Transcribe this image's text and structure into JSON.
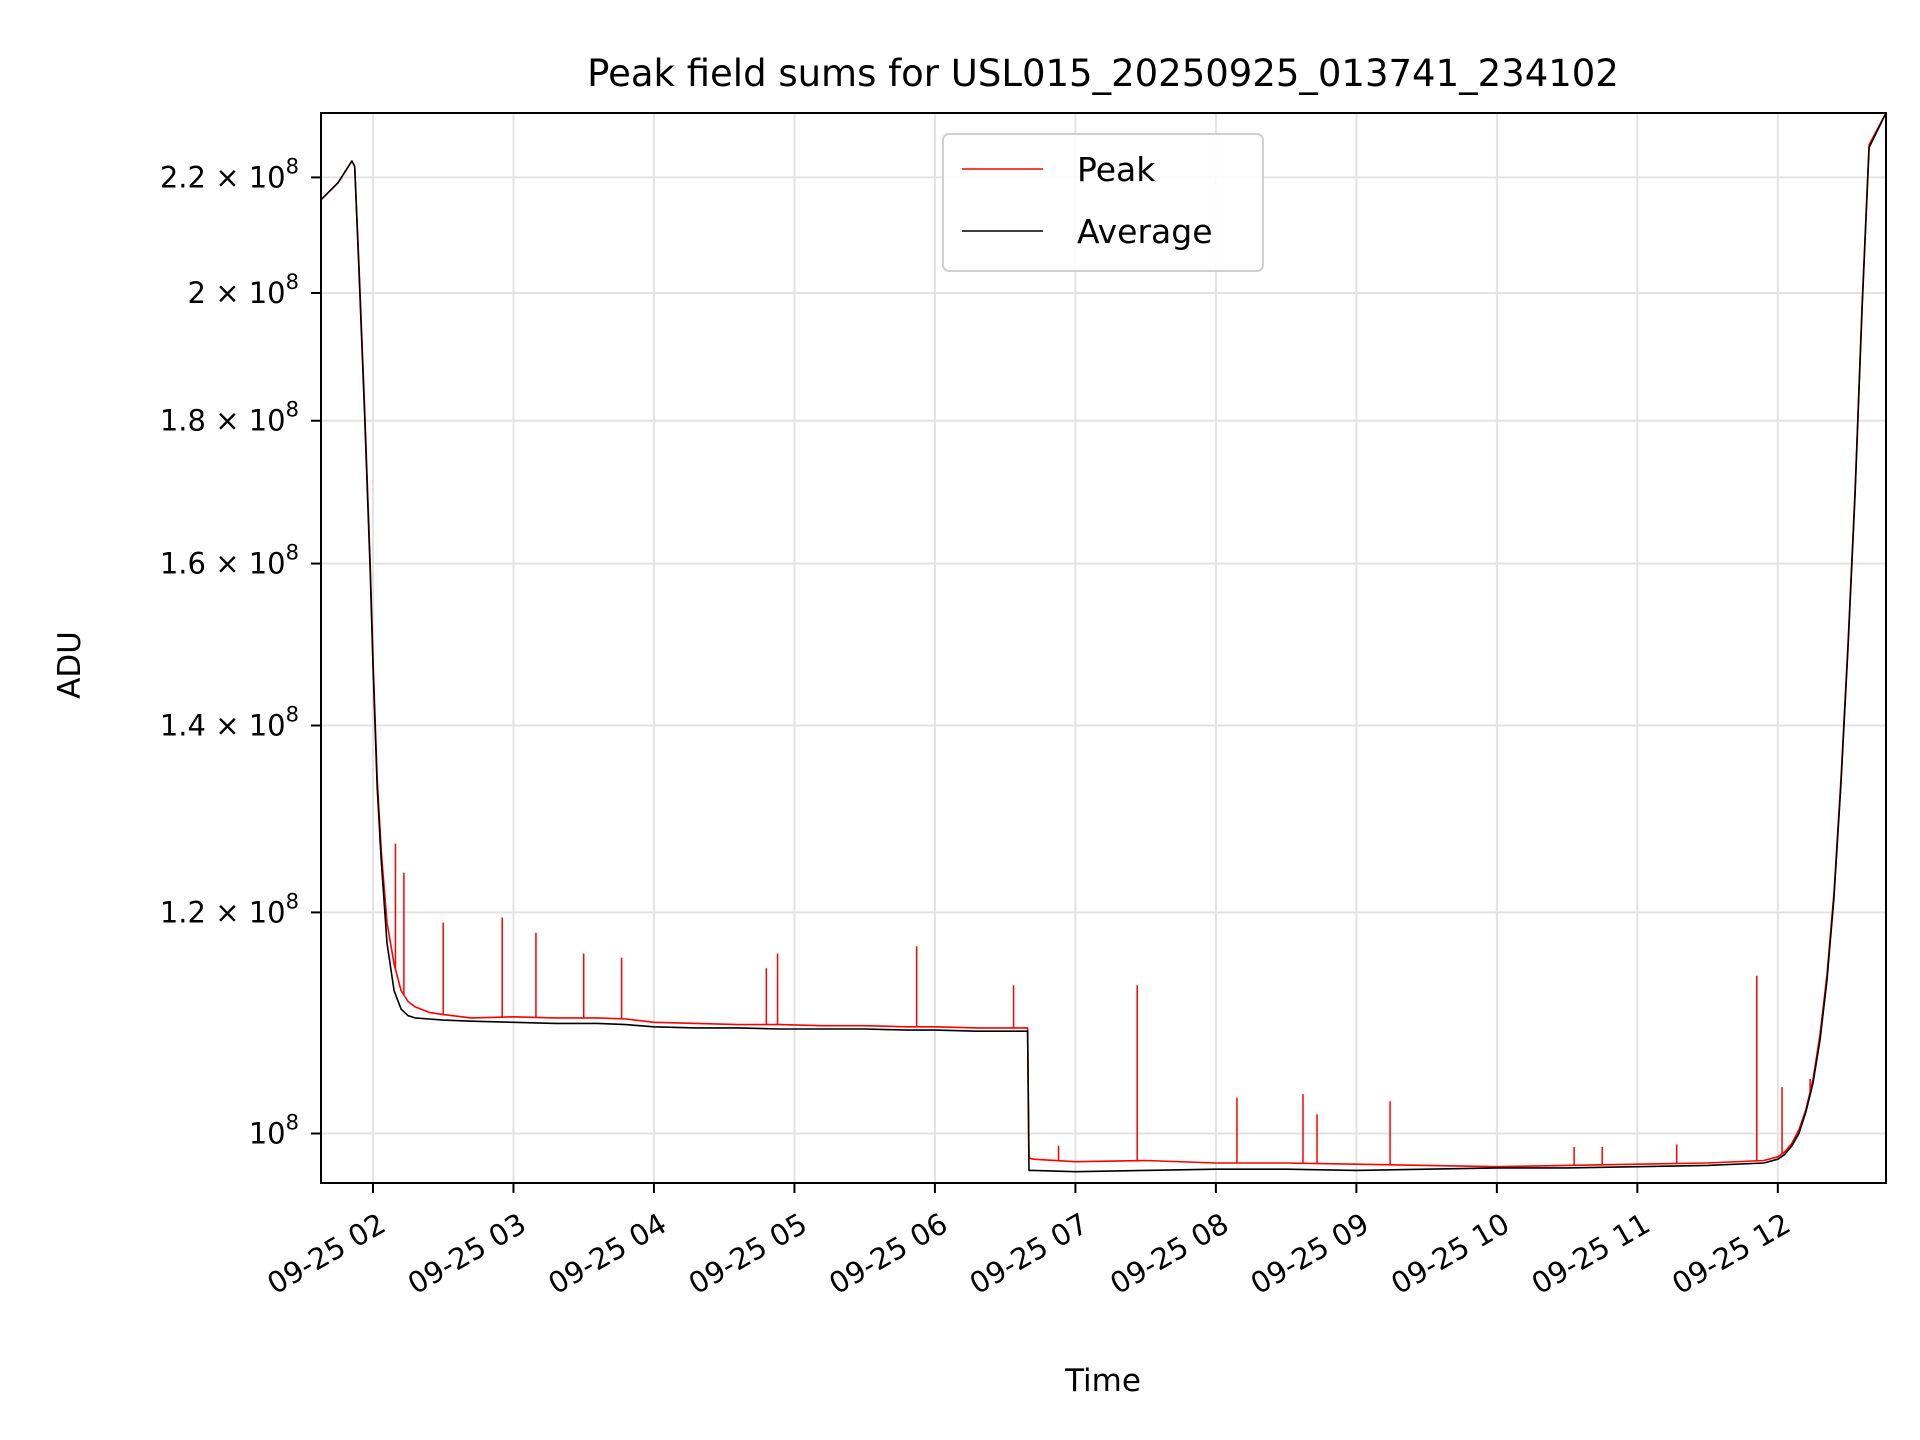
{
  "chart_data": {
    "type": "line",
    "title": "Peak field sums for USL015_20250925_013741_234102",
    "xlabel": "Time",
    "ylabel": "ADU",
    "yscale": "log",
    "grid": true,
    "legend_position": "upper center",
    "x_unit": "hours since 09-25 00:00",
    "xlim": [
      1.63,
      12.77
    ],
    "ylim": [
      96000000,
      232000000
    ],
    "x_ticks": [
      {
        "value": 2,
        "label": "09-25 02"
      },
      {
        "value": 3,
        "label": "09-25 03"
      },
      {
        "value": 4,
        "label": "09-25 04"
      },
      {
        "value": 5,
        "label": "09-25 05"
      },
      {
        "value": 6,
        "label": "09-25 06"
      },
      {
        "value": 7,
        "label": "09-25 07"
      },
      {
        "value": 8,
        "label": "09-25 08"
      },
      {
        "value": 9,
        "label": "09-25 09"
      },
      {
        "value": 10,
        "label": "09-25 10"
      },
      {
        "value": 11,
        "label": "09-25 11"
      },
      {
        "value": 12,
        "label": "09-25 12"
      }
    ],
    "y_ticks": [
      {
        "value": 100000000,
        "mant": "10",
        "exp": "8"
      },
      {
        "value": 120000000,
        "mant": "1.2 × 10",
        "exp": "8"
      },
      {
        "value": 140000000,
        "mant": "1.4 × 10",
        "exp": "8"
      },
      {
        "value": 160000000,
        "mant": "1.6 × 10",
        "exp": "8"
      },
      {
        "value": 180000000,
        "mant": "1.8 × 10",
        "exp": "8"
      },
      {
        "value": 200000000,
        "mant": "2 × 10",
        "exp": "8"
      },
      {
        "value": 220000000,
        "mant": "2.2 × 10",
        "exp": "8"
      }
    ],
    "series": [
      {
        "name": "Peak",
        "color": "#ff0000",
        "x": [
          1.63,
          1.75,
          1.85,
          1.87,
          1.9,
          1.94,
          1.98,
          2.0,
          2.03,
          2.06,
          2.1,
          2.15,
          2.2,
          2.25,
          2.3,
          2.4,
          2.5,
          2.7,
          3.0,
          3.3,
          3.6,
          3.8,
          4.0,
          4.3,
          4.6,
          4.9,
          5.2,
          5.5,
          5.8,
          6.0,
          6.3,
          6.66,
          6.67,
          6.7,
          7.0,
          7.5,
          8.0,
          8.5,
          9.0,
          9.5,
          10.0,
          10.5,
          11.0,
          11.5,
          11.9,
          12.0,
          12.05,
          12.1,
          12.15,
          12.2,
          12.25,
          12.3,
          12.35,
          12.4,
          12.45,
          12.5,
          12.55,
          12.6,
          12.65,
          12.77
        ],
        "y": [
          216000000,
          219000000,
          223000000,
          222000000,
          205000000,
          182000000,
          160000000,
          148000000,
          134000000,
          126000000,
          119000000,
          115000000,
          112500000,
          111500000,
          111000000,
          110500000,
          110300000,
          110000000,
          110100000,
          110000000,
          110000000,
          109900000,
          109600000,
          109500000,
          109400000,
          109400000,
          109300000,
          109300000,
          109200000,
          109200000,
          109100000,
          109100000,
          98000000,
          97900000,
          97700000,
          97800000,
          97600000,
          97600000,
          97500000,
          97400000,
          97300000,
          97400000,
          97500000,
          97600000,
          97800000,
          98100000,
          98500000,
          99200000,
          100300000,
          102000000,
          104500000,
          108500000,
          114000000,
          122000000,
          134000000,
          150000000,
          170000000,
          198000000,
          226000000,
          232000000
        ],
        "spikes": [
          {
            "x": 2.05,
            "y": 127000000
          },
          {
            "x": 2.16,
            "y": 127000000
          },
          {
            "x": 2.22,
            "y": 124000000
          },
          {
            "x": 2.5,
            "y": 119000000
          },
          {
            "x": 2.92,
            "y": 119500000
          },
          {
            "x": 3.16,
            "y": 118000000
          },
          {
            "x": 3.5,
            "y": 116000000
          },
          {
            "x": 3.77,
            "y": 115600000
          },
          {
            "x": 4.8,
            "y": 114600000
          },
          {
            "x": 4.88,
            "y": 116000000
          },
          {
            "x": 5.87,
            "y": 116700000
          },
          {
            "x": 6.56,
            "y": 113000000
          },
          {
            "x": 6.88,
            "y": 99000000
          },
          {
            "x": 7.44,
            "y": 113000000
          },
          {
            "x": 8.15,
            "y": 103000000
          },
          {
            "x": 8.62,
            "y": 103300000
          },
          {
            "x": 8.72,
            "y": 101600000
          },
          {
            "x": 9.24,
            "y": 102700000
          },
          {
            "x": 10.55,
            "y": 98900000
          },
          {
            "x": 10.75,
            "y": 98900000
          },
          {
            "x": 11.28,
            "y": 99100000
          },
          {
            "x": 11.85,
            "y": 113900000
          },
          {
            "x": 12.03,
            "y": 103900000
          },
          {
            "x": 12.23,
            "y": 104600000
          }
        ]
      },
      {
        "name": "Average",
        "color": "#000000",
        "x": [
          1.63,
          1.75,
          1.85,
          1.87,
          1.9,
          1.94,
          1.98,
          2.0,
          2.03,
          2.06,
          2.1,
          2.15,
          2.2,
          2.25,
          2.3,
          2.4,
          2.5,
          2.7,
          3.0,
          3.3,
          3.6,
          3.8,
          4.0,
          4.3,
          4.6,
          4.9,
          5.2,
          5.5,
          5.8,
          6.0,
          6.3,
          6.66,
          6.67,
          6.7,
          7.0,
          7.5,
          8.0,
          8.5,
          9.0,
          9.5,
          10.0,
          10.5,
          11.0,
          11.5,
          11.9,
          12.0,
          12.05,
          12.1,
          12.15,
          12.2,
          12.25,
          12.3,
          12.35,
          12.4,
          12.45,
          12.5,
          12.55,
          12.6,
          12.65,
          12.77
        ],
        "y": [
          216000000,
          219000000,
          223000000,
          222000000,
          204000000,
          181000000,
          159000000,
          147000000,
          133000000,
          125000000,
          117000000,
          112500000,
          110800000,
          110200000,
          110000000,
          109900000,
          109800000,
          109700000,
          109600000,
          109500000,
          109500000,
          109400000,
          109200000,
          109100000,
          109100000,
          109000000,
          109000000,
          109000000,
          108900000,
          108900000,
          108800000,
          108800000,
          97000000,
          97000000,
          96900000,
          97000000,
          97100000,
          97100000,
          97000000,
          97100000,
          97200000,
          97200000,
          97300000,
          97400000,
          97600000,
          97900000,
          98300000,
          99000000,
          100000000,
          101800000,
          104200000,
          108000000,
          113500000,
          121500000,
          133500000,
          149500000,
          169500000,
          197500000,
          225500000,
          232000000
        ]
      }
    ]
  }
}
